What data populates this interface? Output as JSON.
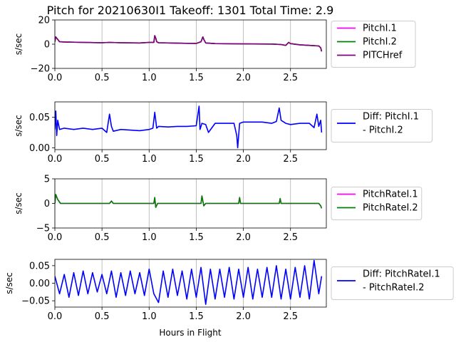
{
  "figure": {
    "title": "Pitch for 20210630I1 Takeoff: 1301 Total Time: 2.9",
    "xlabel": "Hours in Flight"
  },
  "chart_data": [
    {
      "type": "line",
      "ylabel": "s/sec",
      "xlim": [
        0,
        2.88
      ],
      "ylim": [
        -20,
        20
      ],
      "xticks": [
        0.0,
        0.5,
        1.0,
        1.5,
        2.0,
        2.5
      ],
      "xtick_labels": [
        "0.0",
        "0.5",
        "1.0",
        "1.5",
        "2.0",
        "2.5"
      ],
      "yticks": [
        -20,
        0,
        20
      ],
      "ytick_labels": [
        "−20",
        "0",
        "20"
      ],
      "grid": "vertical",
      "legend_position": "outside-right",
      "series": [
        {
          "name": "PitchI.1",
          "color": "#ff00ff",
          "x": [
            0.0,
            0.01,
            0.02,
            0.05,
            0.1,
            0.3,
            0.5,
            0.58,
            0.7,
            0.9,
            1.0,
            1.05,
            1.06,
            1.07,
            1.08,
            1.1,
            1.3,
            1.5,
            1.55,
            1.57,
            1.58,
            1.6,
            1.7,
            1.9,
            2.1,
            2.3,
            2.4,
            2.45,
            2.48,
            2.5,
            2.6,
            2.7,
            2.8,
            2.82,
            2.83
          ],
          "y": [
            2,
            6,
            5,
            2,
            1.8,
            1.5,
            1.2,
            1.5,
            1.2,
            1.0,
            1.5,
            1.5,
            7,
            5,
            2,
            1.2,
            0.8,
            0.6,
            2,
            6,
            4,
            1,
            0.5,
            0.3,
            0.2,
            0.1,
            -0.3,
            -1.0,
            1.5,
            0.5,
            -0.5,
            -1.0,
            -1.5,
            -3,
            -6
          ]
        },
        {
          "name": "PitchI.2",
          "color": "#008000",
          "x": [
            0.0,
            0.01,
            0.02,
            0.05,
            0.1,
            0.3,
            0.5,
            0.58,
            0.7,
            0.9,
            1.0,
            1.05,
            1.06,
            1.07,
            1.08,
            1.1,
            1.3,
            1.5,
            1.55,
            1.57,
            1.58,
            1.6,
            1.7,
            1.9,
            2.1,
            2.3,
            2.4,
            2.45,
            2.48,
            2.5,
            2.6,
            2.7,
            2.8,
            2.82,
            2.83
          ],
          "y": [
            2,
            6,
            5,
            2,
            1.8,
            1.5,
            1.2,
            1.5,
            1.2,
            1.0,
            1.5,
            1.5,
            7,
            5,
            2,
            1.2,
            0.8,
            0.6,
            2,
            6,
            4,
            1,
            0.5,
            0.3,
            0.2,
            0.1,
            -0.3,
            -1.0,
            1.5,
            0.5,
            -0.5,
            -1.0,
            -1.5,
            -3,
            -6
          ]
        },
        {
          "name": "PITCHref",
          "color": "#800080",
          "x": [
            0.0,
            0.01,
            0.02,
            0.05,
            0.1,
            0.3,
            0.5,
            0.58,
            0.7,
            0.9,
            1.0,
            1.05,
            1.06,
            1.07,
            1.08,
            1.1,
            1.3,
            1.5,
            1.55,
            1.57,
            1.58,
            1.6,
            1.7,
            1.9,
            2.1,
            2.3,
            2.4,
            2.45,
            2.48,
            2.5,
            2.6,
            2.7,
            2.8,
            2.82,
            2.83
          ],
          "y": [
            2,
            6,
            5,
            2,
            1.8,
            1.5,
            1.2,
            1.5,
            1.2,
            1.0,
            1.5,
            1.5,
            7,
            5,
            2,
            1.2,
            0.8,
            0.6,
            2,
            6,
            4,
            1,
            0.5,
            0.3,
            0.2,
            0.1,
            -0.3,
            -1.0,
            1.5,
            0.5,
            -0.5,
            -1.0,
            -1.5,
            -3,
            -6
          ]
        }
      ]
    },
    {
      "type": "line",
      "ylabel": "s/sec",
      "xlim": [
        0,
        2.88
      ],
      "ylim": [
        -0.003,
        0.075
      ],
      "xticks": [
        0.0,
        0.5,
        1.0,
        1.5,
        2.0,
        2.5
      ],
      "xtick_labels": [
        "0.0",
        "0.5",
        "1.0",
        "1.5",
        "2.0",
        "2.5"
      ],
      "yticks": [
        0.0,
        0.05
      ],
      "ytick_labels": [
        "0.00",
        "0.05"
      ],
      "grid": "vertical",
      "legend_position": "outside-right",
      "series": [
        {
          "name": "Diff: PitchI.1\n- PitchI.2",
          "color": "#0000ff",
          "x": [
            0.0,
            0.01,
            0.02,
            0.03,
            0.05,
            0.1,
            0.2,
            0.3,
            0.4,
            0.5,
            0.55,
            0.58,
            0.6,
            0.62,
            0.7,
            0.9,
            1.0,
            1.04,
            1.06,
            1.08,
            1.1,
            1.2,
            1.3,
            1.4,
            1.5,
            1.53,
            1.54,
            1.56,
            1.6,
            1.63,
            1.7,
            1.8,
            1.9,
            1.93,
            1.94,
            1.96,
            2.0,
            2.1,
            2.2,
            2.3,
            2.35,
            2.38,
            2.4,
            2.45,
            2.5,
            2.6,
            2.7,
            2.75,
            2.78,
            2.8,
            2.82,
            2.83
          ],
          "y": [
            0.03,
            0.06,
            0.02,
            0.045,
            0.03,
            0.032,
            0.03,
            0.032,
            0.03,
            0.032,
            0.025,
            0.055,
            0.035,
            0.027,
            0.03,
            0.028,
            0.03,
            0.032,
            0.058,
            0.032,
            0.035,
            0.034,
            0.035,
            0.035,
            0.036,
            0.068,
            0.03,
            0.04,
            0.038,
            0.025,
            0.04,
            0.04,
            0.04,
            0.02,
            0.0,
            0.04,
            0.042,
            0.042,
            0.042,
            0.04,
            0.043,
            0.065,
            0.045,
            0.04,
            0.038,
            0.04,
            0.04,
            0.033,
            0.055,
            0.035,
            0.045,
            0.025
          ]
        }
      ]
    },
    {
      "type": "line",
      "ylabel": "s/sec",
      "xlim": [
        0,
        2.88
      ],
      "ylim": [
        -5,
        5
      ],
      "xticks": [
        0.0,
        0.5,
        1.0,
        1.5,
        2.0,
        2.5
      ],
      "xtick_labels": [
        "0.0",
        "0.5",
        "1.0",
        "1.5",
        "2.0",
        "2.5"
      ],
      "yticks": [
        -5,
        0,
        5
      ],
      "ytick_labels": [
        "−5",
        "0",
        "5"
      ],
      "grid": "vertical",
      "legend_position": "outside-right",
      "series": [
        {
          "name": "PitchRateI.1",
          "color": "#ff00ff",
          "x": [
            0.0,
            0.01,
            0.03,
            0.06,
            0.1,
            0.3,
            0.5,
            0.58,
            0.6,
            0.62,
            0.8,
            1.0,
            1.05,
            1.06,
            1.07,
            1.09,
            1.3,
            1.5,
            1.55,
            1.56,
            1.58,
            1.6,
            1.8,
            1.95,
            1.96,
            1.97,
            2.2,
            2.38,
            2.39,
            2.4,
            2.6,
            2.8,
            2.82,
            2.83
          ],
          "y": [
            0,
            1.8,
            0.8,
            0,
            0,
            0,
            0,
            0,
            0.5,
            0,
            0,
            0,
            0,
            1.2,
            -0.8,
            0,
            0,
            0,
            0,
            1.5,
            -0.5,
            0,
            0,
            0,
            1.2,
            0,
            0,
            0,
            1.0,
            0,
            0,
            0,
            -0.5,
            -1.0
          ]
        },
        {
          "name": "PitchRateI.2",
          "color": "#008000",
          "x": [
            0.0,
            0.01,
            0.03,
            0.06,
            0.1,
            0.3,
            0.5,
            0.58,
            0.6,
            0.62,
            0.8,
            1.0,
            1.05,
            1.06,
            1.07,
            1.09,
            1.3,
            1.5,
            1.55,
            1.56,
            1.58,
            1.6,
            1.8,
            1.95,
            1.96,
            1.97,
            2.2,
            2.38,
            2.39,
            2.4,
            2.6,
            2.8,
            2.82,
            2.83
          ],
          "y": [
            0,
            1.8,
            0.8,
            0,
            0,
            0,
            0,
            0,
            0.5,
            0,
            0,
            0,
            0,
            1.2,
            -0.8,
            0,
            0,
            0,
            0,
            1.5,
            -0.5,
            0,
            0,
            0,
            1.2,
            0,
            0,
            0,
            1.0,
            0,
            0,
            0,
            -0.5,
            -1.0
          ]
        }
      ]
    },
    {
      "type": "line",
      "ylabel": "s/sec",
      "xlim": [
        0,
        2.88
      ],
      "ylim": [
        -0.068,
        0.068
      ],
      "xticks": [
        0.0,
        0.5,
        1.0,
        1.5,
        2.0,
        2.5
      ],
      "xtick_labels": [
        "0.0",
        "0.5",
        "1.0",
        "1.5",
        "2.0",
        "2.5"
      ],
      "yticks": [
        -0.05,
        0.0,
        0.05
      ],
      "ytick_labels": [
        "−0.05",
        "0.00",
        "0.05"
      ],
      "grid": "vertical",
      "legend_position": "outside-right",
      "series": [
        {
          "name": "Diff: PitchRateI.1\n- PitchRateI.2",
          "color": "#0000ff",
          "x": [
            0.0,
            0.05,
            0.1,
            0.15,
            0.2,
            0.25,
            0.3,
            0.35,
            0.4,
            0.45,
            0.5,
            0.55,
            0.6,
            0.65,
            0.7,
            0.75,
            0.8,
            0.85,
            0.9,
            0.95,
            1.0,
            1.05,
            1.1,
            1.15,
            1.2,
            1.25,
            1.3,
            1.35,
            1.4,
            1.45,
            1.5,
            1.55,
            1.6,
            1.65,
            1.7,
            1.75,
            1.8,
            1.85,
            1.9,
            1.95,
            2.0,
            2.05,
            2.1,
            2.15,
            2.2,
            2.25,
            2.3,
            2.35,
            2.4,
            2.45,
            2.5,
            2.55,
            2.6,
            2.65,
            2.7,
            2.75,
            2.8,
            2.83
          ],
          "y": [
            0.02,
            -0.03,
            0.025,
            -0.04,
            0.03,
            -0.035,
            0.035,
            -0.03,
            0.03,
            -0.025,
            0.025,
            -0.03,
            0.035,
            -0.04,
            0.03,
            -0.035,
            0.035,
            -0.03,
            0.03,
            -0.035,
            0.04,
            -0.03,
            -0.055,
            0.035,
            -0.04,
            0.04,
            -0.035,
            0.035,
            -0.045,
            0.04,
            -0.04,
            0.045,
            -0.06,
            0.04,
            -0.045,
            0.04,
            -0.04,
            0.045,
            -0.045,
            0.04,
            -0.04,
            0.045,
            -0.045,
            0.04,
            -0.04,
            0.045,
            -0.04,
            0.05,
            -0.045,
            0.04,
            -0.045,
            0.045,
            -0.04,
            0.05,
            -0.045,
            0.065,
            -0.03,
            0.02
          ]
        }
      ]
    }
  ]
}
